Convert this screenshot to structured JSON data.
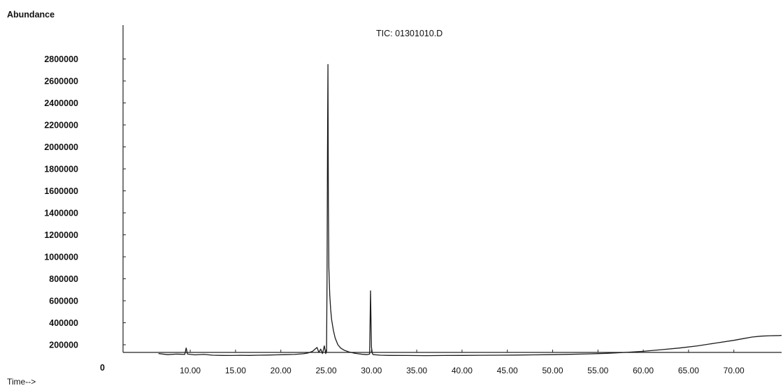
{
  "chart_data": {
    "type": "line",
    "title": "TIC: 01301010.D",
    "ylabel": "Abundance",
    "xlabel": "Time-->",
    "origin_label": "0",
    "xlim": [
      6.5,
      78
    ],
    "ylim": [
      0,
      3000000
    ],
    "x_ticks": [
      {
        "value": 10,
        "label": "10.00"
      },
      {
        "value": 15,
        "label": "15.00"
      },
      {
        "value": 20,
        "label": "20.00"
      },
      {
        "value": 25,
        "label": "25.00"
      },
      {
        "value": 30,
        "label": "30.00"
      },
      {
        "value": 35,
        "label": "35.00"
      },
      {
        "value": 40,
        "label": "40.00"
      },
      {
        "value": 45,
        "label": "45.00"
      },
      {
        "value": 50,
        "label": "50.00"
      },
      {
        "value": 55,
        "label": "55.00"
      },
      {
        "value": 60,
        "label": "60.00"
      },
      {
        "value": 65,
        "label": "65.00"
      },
      {
        "value": 70,
        "label": "70.00"
      }
    ],
    "y_ticks": [
      {
        "value": 200000,
        "label": "200000"
      },
      {
        "value": 400000,
        "label": "400000"
      },
      {
        "value": 600000,
        "label": "600000"
      },
      {
        "value": 800000,
        "label": "800000"
      },
      {
        "value": 1000000,
        "label": "1000000"
      },
      {
        "value": 1200000,
        "label": "1200000"
      },
      {
        "value": 1400000,
        "label": "1400000"
      },
      {
        "value": 1600000,
        "label": "1600000"
      },
      {
        "value": 1800000,
        "label": "1800000"
      },
      {
        "value": 2000000,
        "label": "2000000"
      },
      {
        "value": 2200000,
        "label": "2200000"
      },
      {
        "value": 2400000,
        "label": "2400000"
      },
      {
        "value": 2600000,
        "label": "2600000"
      },
      {
        "value": 2800000,
        "label": "2800000"
      }
    ],
    "grid": false,
    "series": [
      {
        "color": "#1a1a1a",
        "x": [
          6.5,
          7.5,
          8.5,
          9.4,
          9.55,
          9.7,
          10.5,
          11.5,
          12.5,
          13.5,
          14.5,
          15.5,
          16.5,
          17.5,
          18.5,
          19.5,
          20.5,
          21.5,
          22.5,
          23.0,
          23.5,
          24.0,
          24.2,
          24.4,
          24.6,
          24.8,
          24.95,
          25.05,
          25.1,
          25.15,
          25.2,
          25.25,
          25.3,
          25.4,
          25.5,
          25.6,
          25.8,
          26.0,
          26.3,
          26.6,
          27.0,
          27.5,
          28.0,
          28.5,
          29.0,
          29.5,
          29.8,
          29.9,
          30.0,
          30.1,
          30.2,
          30.5,
          31.0,
          32.0,
          34.0,
          36.0,
          38.0,
          40.0,
          42.0,
          44.0,
          46.0,
          48.0,
          50.0,
          52.0,
          54.0,
          56.0,
          58.0,
          60.0,
          62.0,
          64.0,
          66.0,
          68.0,
          70.0,
          71.0,
          72.0,
          73.0,
          74.0,
          75.0,
          76.0,
          77.0,
          78.0
        ],
        "y": [
          120000,
          110000,
          115000,
          112000,
          170000,
          115000,
          108000,
          112000,
          105000,
          103000,
          102000,
          104000,
          103000,
          105000,
          106000,
          108000,
          110000,
          112000,
          118000,
          125000,
          140000,
          175000,
          130000,
          160000,
          120000,
          190000,
          120000,
          140000,
          800000,
          1900000,
          2750000,
          1500000,
          900000,
          650000,
          520000,
          430000,
          330000,
          260000,
          200000,
          170000,
          150000,
          135000,
          125000,
          118000,
          113000,
          110000,
          115000,
          690000,
          180000,
          120000,
          110000,
          108000,
          105000,
          103000,
          102000,
          101000,
          102000,
          103000,
          104000,
          105000,
          106000,
          108000,
          110000,
          113000,
          117000,
          122000,
          130000,
          140000,
          155000,
          170000,
          190000,
          215000,
          240000,
          255000,
          270000,
          278000,
          282000,
          284000,
          285000,
          285000,
          285000
        ]
      }
    ]
  }
}
